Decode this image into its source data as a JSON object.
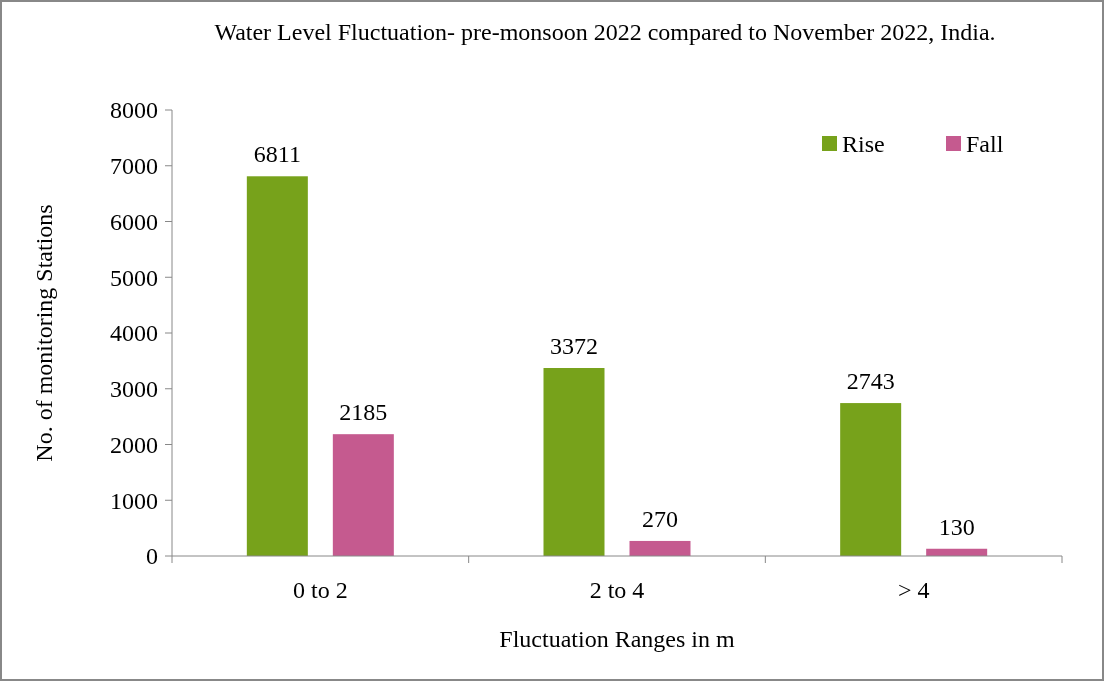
{
  "chart_data": {
    "type": "bar",
    "title": "Water Level Fluctuation- pre-monsoon 2022 compared to November 2022, India.",
    "xlabel": "Fluctuation Ranges in m",
    "ylabel": "No. of monitoring Stations",
    "categories": [
      "0 to 2",
      "2 to 4",
      "> 4"
    ],
    "series": [
      {
        "name": "Rise",
        "color": "#77a21b",
        "values": [
          6811,
          3372,
          2743
        ]
      },
      {
        "name": "Fall",
        "color": "#c55a8f",
        "values": [
          2185,
          270,
          130
        ]
      }
    ],
    "ylim": [
      0,
      8000
    ],
    "yticks": [
      0,
      1000,
      2000,
      3000,
      4000,
      5000,
      6000,
      7000,
      8000
    ],
    "data_labels": true,
    "legend": "top right",
    "grid": false
  }
}
